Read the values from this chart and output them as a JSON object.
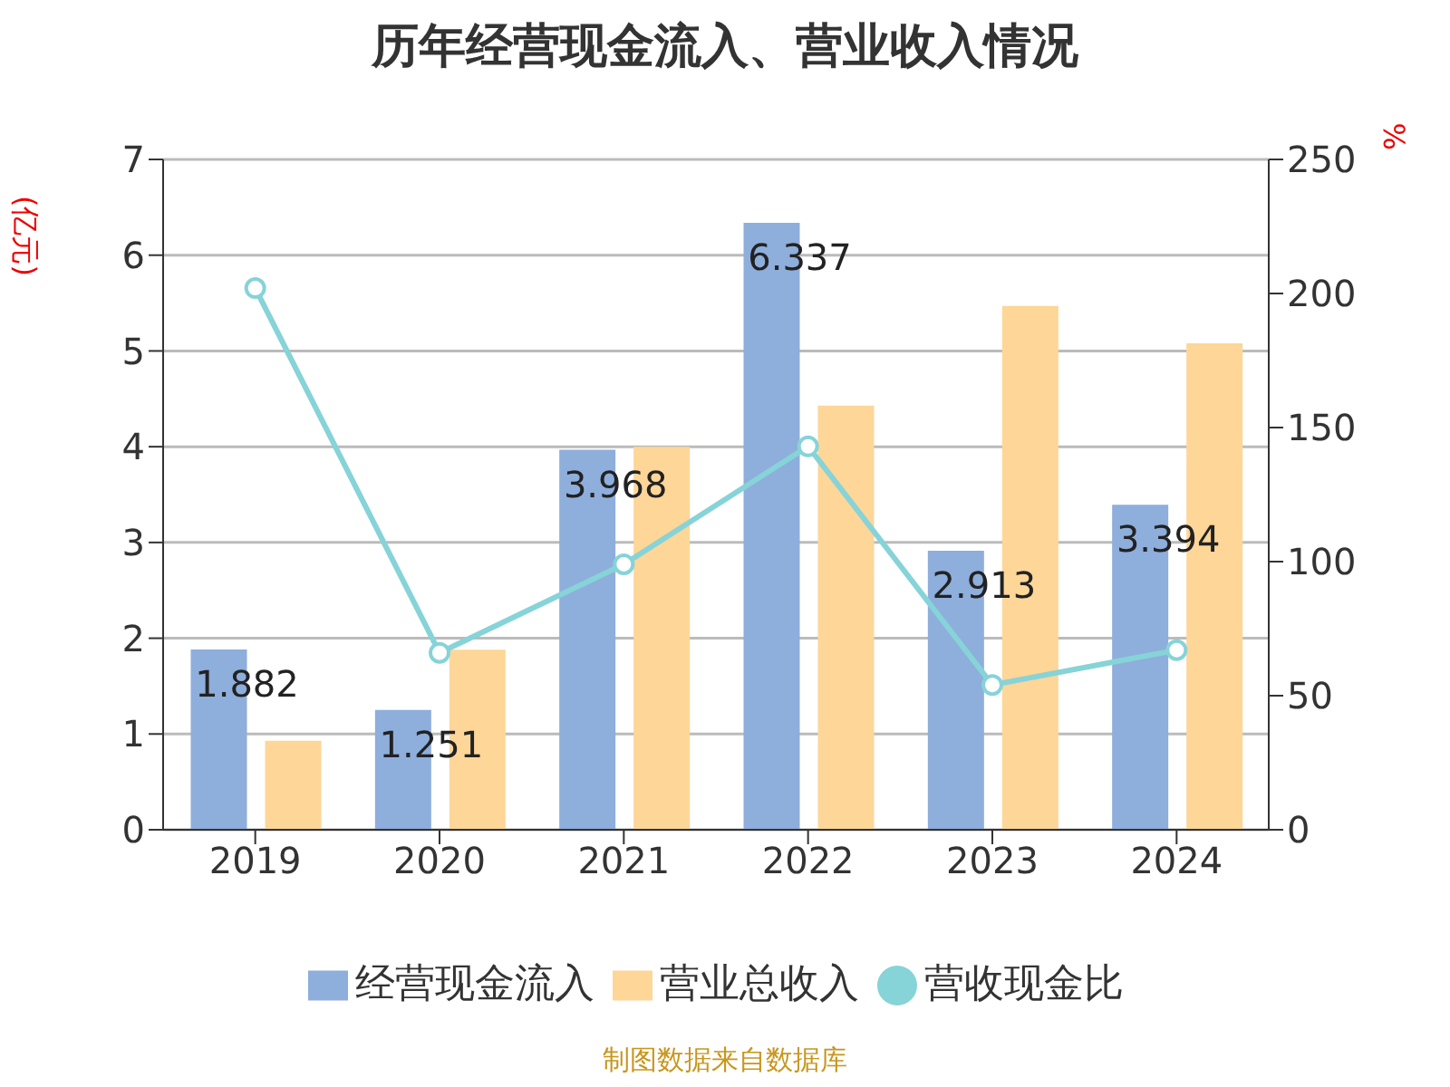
{
  "chart_data": {
    "type": "bar",
    "title": "历年经营现金流入、营业收入情况",
    "ylabel": "(亿元)",
    "y2label": "%",
    "categories": [
      "2019",
      "2020",
      "2021",
      "2022",
      "2023",
      "2024"
    ],
    "series": [
      {
        "name": "经营现金流入",
        "color": "#8eaedc",
        "values": [
          1.882,
          1.251,
          3.968,
          6.337,
          2.913,
          3.394
        ],
        "value_labels": [
          "1.882",
          "1.251",
          "3.968",
          "6.337",
          "2.913",
          "3.394"
        ]
      },
      {
        "name": "营业总收入",
        "color": "#fdd698",
        "values": [
          0.93,
          1.88,
          4.0,
          4.43,
          5.47,
          5.08
        ]
      },
      {
        "name": "营收现金比",
        "type": "line",
        "axis": "y2",
        "color": "#86d3d8",
        "marker": "circle",
        "values": [
          202,
          66,
          99,
          143,
          54,
          67
        ]
      }
    ],
    "ylim": [
      0,
      7
    ],
    "yticks": [
      0,
      1,
      2,
      3,
      4,
      5,
      6,
      7
    ],
    "y2lim": [
      0,
      250
    ],
    "y2ticks": [
      0,
      50,
      100,
      150,
      200,
      250
    ],
    "grid": "y",
    "legend": "bottom",
    "annotations": [
      "制图数据来自数据库"
    ]
  }
}
